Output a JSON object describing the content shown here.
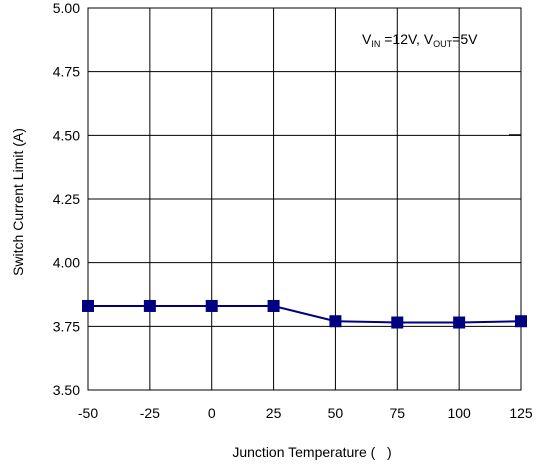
{
  "chart_data": {
    "type": "line",
    "xlabel": "Junction Temperature (   )",
    "ylabel": "Switch Current Limit (A)",
    "x": [
      -50,
      -25,
      0,
      25,
      50,
      75,
      100,
      125
    ],
    "xticks": [
      "-50",
      "-25",
      "0",
      "25",
      "50",
      "75",
      "100",
      "125"
    ],
    "yticks": [
      "3.50",
      "3.75",
      "4.00",
      "4.25",
      "4.50",
      "4.75",
      "5.00"
    ],
    "xlim": [
      -50,
      125
    ],
    "ylim": [
      3.5,
      5.0
    ],
    "grid": true,
    "series": [
      {
        "values": [
          3.83,
          3.83,
          3.83,
          3.83,
          3.77,
          3.765,
          3.765,
          3.77
        ],
        "color": "#000080",
        "marker": "square"
      }
    ],
    "annotation": {
      "vin_main": "V",
      "vin_sub": "IN",
      "vin_rest": " =12V, ",
      "vout_main": "V",
      "vout_sub": "OUT",
      "vout_rest": "=5V"
    }
  }
}
